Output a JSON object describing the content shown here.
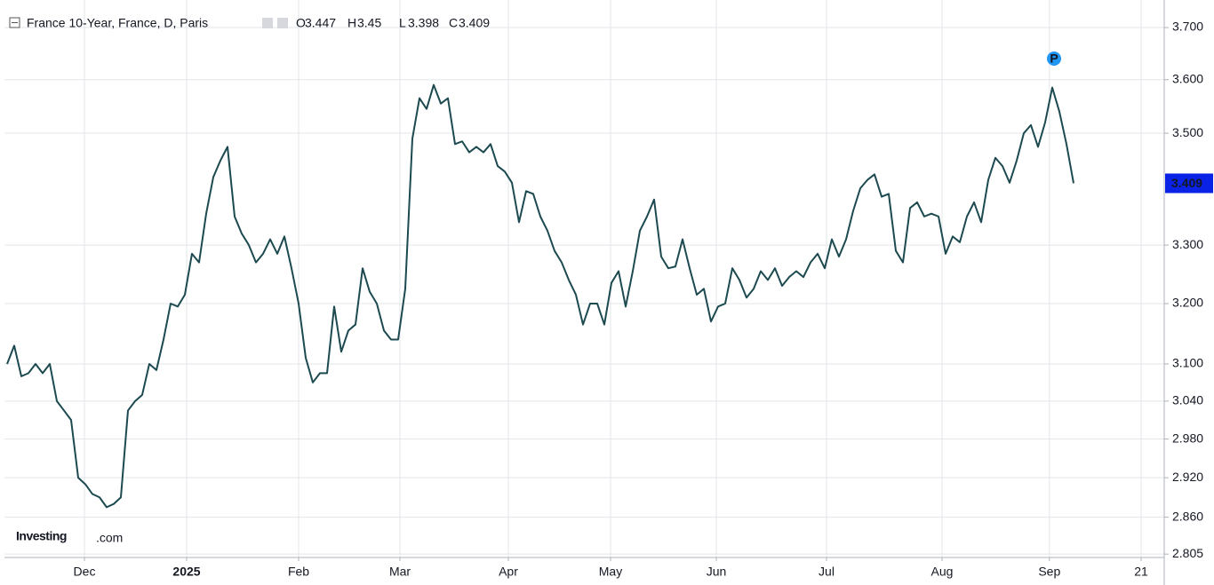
{
  "chart_data": {
    "type": "line",
    "title": "France 10-Year, France, D, Paris",
    "ohlc": [
      {
        "label": "O",
        "value": 3.447
      },
      {
        "label": "H",
        "value": 3.45
      },
      {
        "label": "L",
        "value": 3.398
      },
      {
        "label": "C",
        "value": 3.409
      }
    ],
    "annotation": "P",
    "logo": {
      "brand": "Investing",
      "suffix": ".com"
    },
    "log_scale": true,
    "grid": true,
    "xlim": [
      -0.375,
      162.75
    ],
    "xticks": [
      {
        "value": 10.875,
        "label": "Dec"
      },
      {
        "value": 25.25,
        "label": "2025"
      },
      {
        "value": 41,
        "label": "Feb"
      },
      {
        "value": 55.25,
        "label": "Mar"
      },
      {
        "value": 70.5,
        "label": "Apr"
      },
      {
        "value": 84.875,
        "label": "May"
      },
      {
        "value": 99.75,
        "label": "Jun"
      },
      {
        "value": 115.25,
        "label": "Jul"
      },
      {
        "value": 131.5,
        "label": "Aug"
      },
      {
        "value": 146.6,
        "label": "Sep"
      },
      {
        "value": 159.5,
        "label": "21"
      }
    ],
    "ylim": [
      2.8,
      3.74
    ],
    "yticks": [
      {
        "value": 3.7,
        "label": "3.700"
      },
      {
        "value": 3.6,
        "label": "3.600"
      },
      {
        "value": 3.5,
        "label": "3.500"
      },
      {
        "value": 3.3,
        "label": "3.300"
      },
      {
        "value": 3.2,
        "label": "3.200"
      },
      {
        "value": 3.1,
        "label": "3.100"
      },
      {
        "value": 3.04,
        "label": "3.040"
      },
      {
        "value": 2.98,
        "label": "2.980"
      },
      {
        "value": 2.92,
        "label": "2.920"
      },
      {
        "value": 2.86,
        "label": "2.860"
      },
      {
        "value": 2.805,
        "label": "2.805"
      }
    ],
    "series": [
      {
        "name": "France 10-Year",
        "color": "#1c4a50",
        "values": [
          3.1,
          3.13,
          3.08,
          3.085,
          3.1,
          3.085,
          3.1,
          3.04,
          3.025,
          3.01,
          2.92,
          2.91,
          2.895,
          2.89,
          2.875,
          2.88,
          2.89,
          3.025,
          3.04,
          3.05,
          3.1,
          3.09,
          3.14,
          3.2,
          3.195,
          3.215,
          3.285,
          3.27,
          3.355,
          3.42,
          3.45,
          3.475,
          3.35,
          3.32,
          3.3,
          3.27,
          3.285,
          3.31,
          3.285,
          3.315,
          3.26,
          3.2,
          3.11,
          3.07,
          3.085,
          3.085,
          3.195,
          3.12,
          3.155,
          3.165,
          3.26,
          3.22,
          3.2,
          3.155,
          3.14,
          3.14,
          3.225,
          3.49,
          3.565,
          3.545,
          3.59,
          3.555,
          3.565,
          3.48,
          3.485,
          3.465,
          3.475,
          3.465,
          3.48,
          3.44,
          3.43,
          3.41,
          3.34,
          3.395,
          3.39,
          3.35,
          3.325,
          3.29,
          3.27,
          3.24,
          3.215,
          3.165,
          3.2,
          3.2,
          3.165,
          3.235,
          3.255,
          3.195,
          3.255,
          3.325,
          3.35,
          3.38,
          3.28,
          3.26,
          3.263,
          3.31,
          3.26,
          3.215,
          3.225,
          3.17,
          3.195,
          3.2,
          3.26,
          3.24,
          3.21,
          3.225,
          3.255,
          3.24,
          3.26,
          3.23,
          3.245,
          3.255,
          3.245,
          3.27,
          3.285,
          3.26,
          3.31,
          3.28,
          3.31,
          3.36,
          3.4,
          3.415,
          3.425,
          3.385,
          3.39,
          3.29,
          3.27,
          3.365,
          3.375,
          3.35,
          3.355,
          3.35,
          3.285,
          3.315,
          3.305,
          3.35,
          3.375,
          3.34,
          3.415,
          3.455,
          3.44,
          3.41,
          3.45,
          3.5,
          3.515,
          3.475,
          3.52,
          3.585,
          3.54,
          3.48,
          3.409
        ]
      }
    ]
  }
}
